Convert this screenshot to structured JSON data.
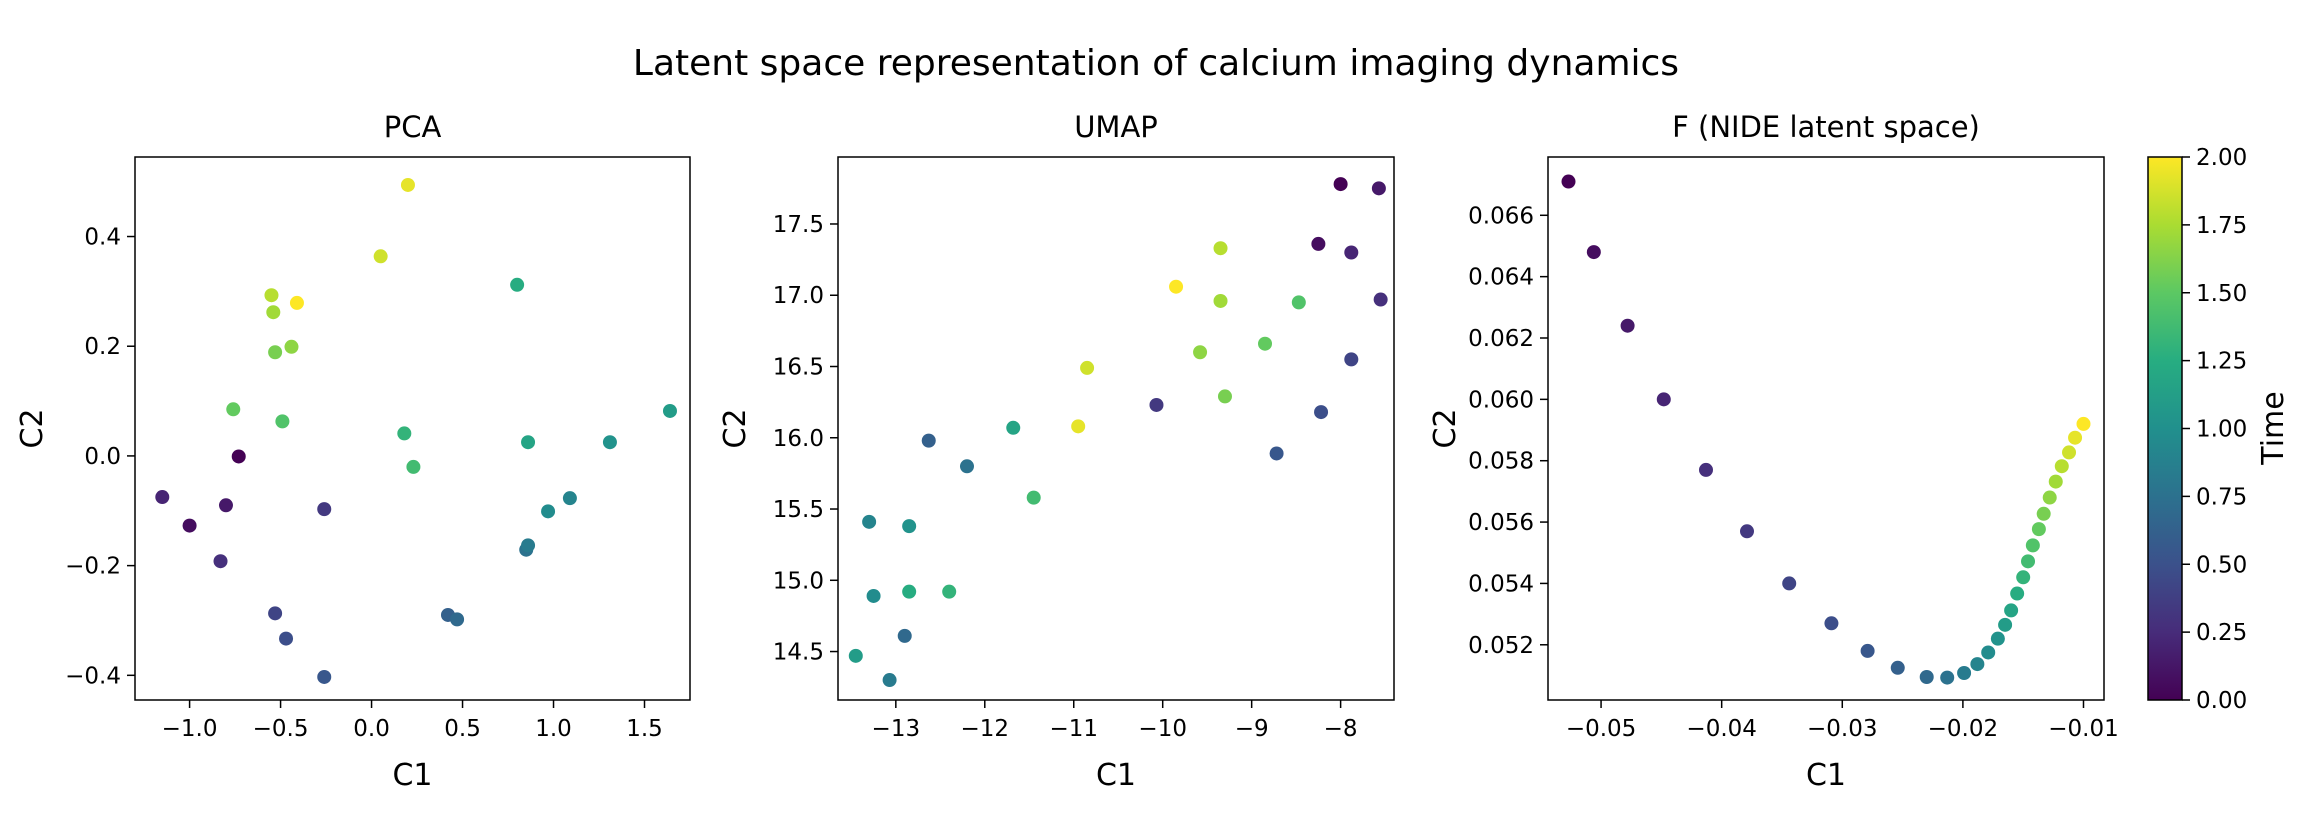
{
  "figure": {
    "title": "Latent space representation of calcium imaging dynamics"
  },
  "colorbar": {
    "label": "Time",
    "min": 0,
    "max": 2,
    "ticks": [
      "0.00",
      "0.25",
      "0.50",
      "0.75",
      "1.00",
      "1.25",
      "1.50",
      "1.75",
      "2.00"
    ],
    "colormap": "viridis"
  },
  "chart_data": [
    {
      "type": "scatter",
      "title": "PCA",
      "xlabel": "C1",
      "ylabel": "C2",
      "xlim": [
        -1.3,
        1.75
      ],
      "ylim": [
        -0.445,
        0.545
      ],
      "xticks": [
        -1.0,
        -0.5,
        0.0,
        0.5,
        1.0,
        1.5
      ],
      "xtick_labels": [
        "−1.0",
        "−0.5",
        "0.0",
        "0.5",
        "1.0",
        "1.5"
      ],
      "yticks": [
        -0.4,
        -0.2,
        0.0,
        0.2,
        0.4
      ],
      "ytick_labels": [
        "−0.4",
        "−0.2",
        "0.0",
        "0.2",
        "0.4"
      ],
      "grid": false,
      "points": [
        {
          "x": -0.73,
          "y": -0.001,
          "t": 0.0
        },
        {
          "x": -1.0,
          "y": -0.127,
          "t": 0.07
        },
        {
          "x": -0.8,
          "y": -0.09,
          "t": 0.14
        },
        {
          "x": -1.15,
          "y": -0.075,
          "t": 0.21
        },
        {
          "x": -0.83,
          "y": -0.192,
          "t": 0.28
        },
        {
          "x": -0.26,
          "y": -0.097,
          "t": 0.34
        },
        {
          "x": -0.53,
          "y": -0.287,
          "t": 0.41
        },
        {
          "x": -0.47,
          "y": -0.333,
          "t": 0.48
        },
        {
          "x": -0.26,
          "y": -0.403,
          "t": 0.55
        },
        {
          "x": 0.42,
          "y": -0.29,
          "t": 0.62
        },
        {
          "x": 0.47,
          "y": -0.298,
          "t": 0.69
        },
        {
          "x": 0.85,
          "y": -0.171,
          "t": 0.76
        },
        {
          "x": 0.86,
          "y": -0.163,
          "t": 0.83
        },
        {
          "x": 1.09,
          "y": -0.077,
          "t": 0.9
        },
        {
          "x": 0.97,
          "y": -0.101,
          "t": 0.97
        },
        {
          "x": 1.31,
          "y": 0.025,
          "t": 1.03
        },
        {
          "x": 1.64,
          "y": 0.082,
          "t": 1.1
        },
        {
          "x": 0.86,
          "y": 0.025,
          "t": 1.17
        },
        {
          "x": 0.8,
          "y": 0.312,
          "t": 1.24
        },
        {
          "x": 0.18,
          "y": 0.041,
          "t": 1.31
        },
        {
          "x": 0.23,
          "y": -0.02,
          "t": 1.38
        },
        {
          "x": -0.49,
          "y": 0.063,
          "t": 1.45
        },
        {
          "x": -0.76,
          "y": 0.085,
          "t": 1.52
        },
        {
          "x": -0.53,
          "y": 0.189,
          "t": 1.59
        },
        {
          "x": -0.44,
          "y": 0.199,
          "t": 1.66
        },
        {
          "x": -0.54,
          "y": 0.262,
          "t": 1.72
        },
        {
          "x": -0.55,
          "y": 0.293,
          "t": 1.79
        },
        {
          "x": 0.05,
          "y": 0.364,
          "t": 1.86
        },
        {
          "x": 0.2,
          "y": 0.494,
          "t": 1.93
        },
        {
          "x": -0.41,
          "y": 0.279,
          "t": 2.0
        }
      ]
    },
    {
      "type": "scatter",
      "title": "UMAP",
      "xlabel": "C1",
      "ylabel": "C2",
      "xlim": [
        -13.65,
        -7.4
      ],
      "ylim": [
        14.16,
        17.97
      ],
      "xticks": [
        -13,
        -12,
        -11,
        -10,
        -9,
        -8
      ],
      "xtick_labels": [
        "−13",
        "−12",
        "−11",
        "−10",
        "−9",
        "−8"
      ],
      "yticks": [
        14.5,
        15.0,
        15.5,
        16.0,
        16.5,
        17.0,
        17.5
      ],
      "ytick_labels": [
        "14.5",
        "15.0",
        "15.5",
        "16.0",
        "16.5",
        "17.0",
        "17.5"
      ],
      "grid": false,
      "points": [
        {
          "x": -8.0,
          "y": 17.78,
          "t": 0.0
        },
        {
          "x": -8.25,
          "y": 17.36,
          "t": 0.07
        },
        {
          "x": -7.57,
          "y": 17.75,
          "t": 0.14
        },
        {
          "x": -7.88,
          "y": 17.3,
          "t": 0.21
        },
        {
          "x": -7.55,
          "y": 16.97,
          "t": 0.28
        },
        {
          "x": -10.07,
          "y": 16.23,
          "t": 0.34
        },
        {
          "x": -7.88,
          "y": 16.55,
          "t": 0.41
        },
        {
          "x": -8.22,
          "y": 16.18,
          "t": 0.48
        },
        {
          "x": -8.72,
          "y": 15.89,
          "t": 0.55
        },
        {
          "x": -12.63,
          "y": 15.98,
          "t": 0.62
        },
        {
          "x": -12.9,
          "y": 14.61,
          "t": 0.69
        },
        {
          "x": -12.2,
          "y": 15.8,
          "t": 0.76
        },
        {
          "x": -13.07,
          "y": 14.3,
          "t": 0.83
        },
        {
          "x": -13.3,
          "y": 15.41,
          "t": 0.9
        },
        {
          "x": -13.25,
          "y": 14.89,
          "t": 0.97
        },
        {
          "x": -12.85,
          "y": 15.38,
          "t": 1.03
        },
        {
          "x": -13.45,
          "y": 14.47,
          "t": 1.1
        },
        {
          "x": -11.68,
          "y": 16.07,
          "t": 1.17
        },
        {
          "x": -12.85,
          "y": 14.92,
          "t": 1.24
        },
        {
          "x": -12.4,
          "y": 14.92,
          "t": 1.31
        },
        {
          "x": -11.45,
          "y": 15.58,
          "t": 1.38
        },
        {
          "x": -8.47,
          "y": 16.95,
          "t": 1.45
        },
        {
          "x": -8.85,
          "y": 16.66,
          "t": 1.52
        },
        {
          "x": -9.3,
          "y": 16.29,
          "t": 1.59
        },
        {
          "x": -9.58,
          "y": 16.6,
          "t": 1.66
        },
        {
          "x": -9.35,
          "y": 16.96,
          "t": 1.72
        },
        {
          "x": -9.35,
          "y": 17.33,
          "t": 1.79
        },
        {
          "x": -10.85,
          "y": 16.49,
          "t": 1.86
        },
        {
          "x": -10.95,
          "y": 16.08,
          "t": 1.93
        },
        {
          "x": -9.85,
          "y": 17.06,
          "t": 2.0
        }
      ]
    },
    {
      "type": "scatter",
      "title": "F (NIDE latent space)",
      "xlabel": "C1",
      "ylabel": "C2",
      "xlim": [
        -0.0544,
        -0.0083
      ],
      "ylim": [
        0.0502,
        0.0679
      ],
      "xticks": [
        -0.05,
        -0.04,
        -0.03,
        -0.02,
        -0.01
      ],
      "xtick_labels": [
        "−0.05",
        "−0.04",
        "−0.03",
        "−0.02",
        "−0.01"
      ],
      "yticks": [
        0.052,
        0.054,
        0.056,
        0.058,
        0.06,
        0.062,
        0.064,
        0.066
      ],
      "ytick_labels": [
        "0.052",
        "0.054",
        "0.056",
        "0.058",
        "0.060",
        "0.062",
        "0.064",
        "0.066"
      ],
      "grid": false,
      "points": [
        {
          "x": -0.0527,
          "y": 0.0671,
          "t": 0.0
        },
        {
          "x": -0.0506,
          "y": 0.0648,
          "t": 0.07
        },
        {
          "x": -0.0478,
          "y": 0.0624,
          "t": 0.14
        },
        {
          "x": -0.0448,
          "y": 0.06,
          "t": 0.21
        },
        {
          "x": -0.0413,
          "y": 0.0577,
          "t": 0.28
        },
        {
          "x": -0.0379,
          "y": 0.0557,
          "t": 0.34
        },
        {
          "x": -0.0344,
          "y": 0.054,
          "t": 0.41
        },
        {
          "x": -0.0309,
          "y": 0.0527,
          "t": 0.48
        },
        {
          "x": -0.0279,
          "y": 0.0518,
          "t": 0.55
        },
        {
          "x": -0.0254,
          "y": 0.05125,
          "t": 0.62
        },
        {
          "x": -0.023,
          "y": 0.05095,
          "t": 0.69
        },
        {
          "x": -0.0213,
          "y": 0.05093,
          "t": 0.76
        },
        {
          "x": -0.0199,
          "y": 0.05108,
          "t": 0.83
        },
        {
          "x": -0.0188,
          "y": 0.05137,
          "t": 0.9
        },
        {
          "x": -0.0179,
          "y": 0.05175,
          "t": 0.97
        },
        {
          "x": -0.0171,
          "y": 0.0522,
          "t": 1.03
        },
        {
          "x": -0.0165,
          "y": 0.05265,
          "t": 1.1
        },
        {
          "x": -0.016,
          "y": 0.05312,
          "t": 1.17
        },
        {
          "x": -0.0155,
          "y": 0.05367,
          "t": 1.24
        },
        {
          "x": -0.015,
          "y": 0.0542,
          "t": 1.31
        },
        {
          "x": -0.0146,
          "y": 0.05472,
          "t": 1.38
        },
        {
          "x": -0.0142,
          "y": 0.05524,
          "t": 1.45
        },
        {
          "x": -0.0137,
          "y": 0.05577,
          "t": 1.52
        },
        {
          "x": -0.0133,
          "y": 0.05627,
          "t": 1.59
        },
        {
          "x": -0.0128,
          "y": 0.0568,
          "t": 1.66
        },
        {
          "x": -0.0123,
          "y": 0.05732,
          "t": 1.72
        },
        {
          "x": -0.0118,
          "y": 0.05782,
          "t": 1.79
        },
        {
          "x": -0.0112,
          "y": 0.05827,
          "t": 1.86
        },
        {
          "x": -0.0107,
          "y": 0.05875,
          "t": 1.93
        },
        {
          "x": -0.01,
          "y": 0.0592,
          "t": 2.0
        }
      ]
    }
  ]
}
